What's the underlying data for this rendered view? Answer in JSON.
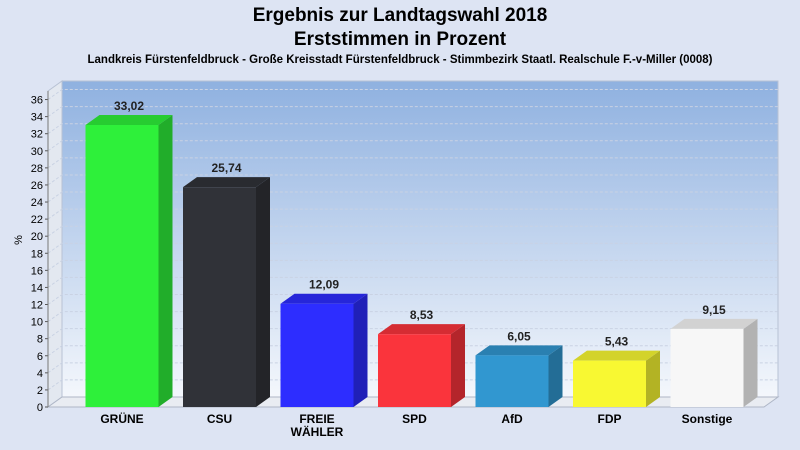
{
  "header": {
    "title_line1": "Ergebnis zur Landtagswahl 2018",
    "title_line2": "Erststimmen in Prozent",
    "subtitle": "Landkreis Fürstenfeldbruck - Große Kreisstadt Fürstenfeldbruck - Stimmbezirk Staatl. Realschule F.-v-Miller (0008)"
  },
  "chart_data": {
    "type": "bar",
    "title": "Ergebnis zur Landtagswahl 2018 — Erststimmen in Prozent",
    "ylabel": "%",
    "xlabel": "",
    "ylim": [
      0,
      37
    ],
    "ytick_step": 2,
    "grid": true,
    "categories": [
      [
        "GRÜNE"
      ],
      [
        "CSU"
      ],
      [
        "FREIE",
        "WÄHLER"
      ],
      [
        "SPD"
      ],
      [
        "AfD"
      ],
      [
        "FDP"
      ],
      [
        "Sonstige"
      ]
    ],
    "values": [
      33.02,
      25.74,
      12.09,
      8.53,
      6.05,
      5.43,
      9.15
    ],
    "value_labels": [
      "33,02",
      "25,74",
      "12,09",
      "8,53",
      "6,05",
      "5,43",
      "9,15"
    ],
    "colors": [
      "#2ef03a",
      "#303238",
      "#2d2dff",
      "#fa343c",
      "#3197d0",
      "#f8f832",
      "#f7f7f7"
    ]
  }
}
